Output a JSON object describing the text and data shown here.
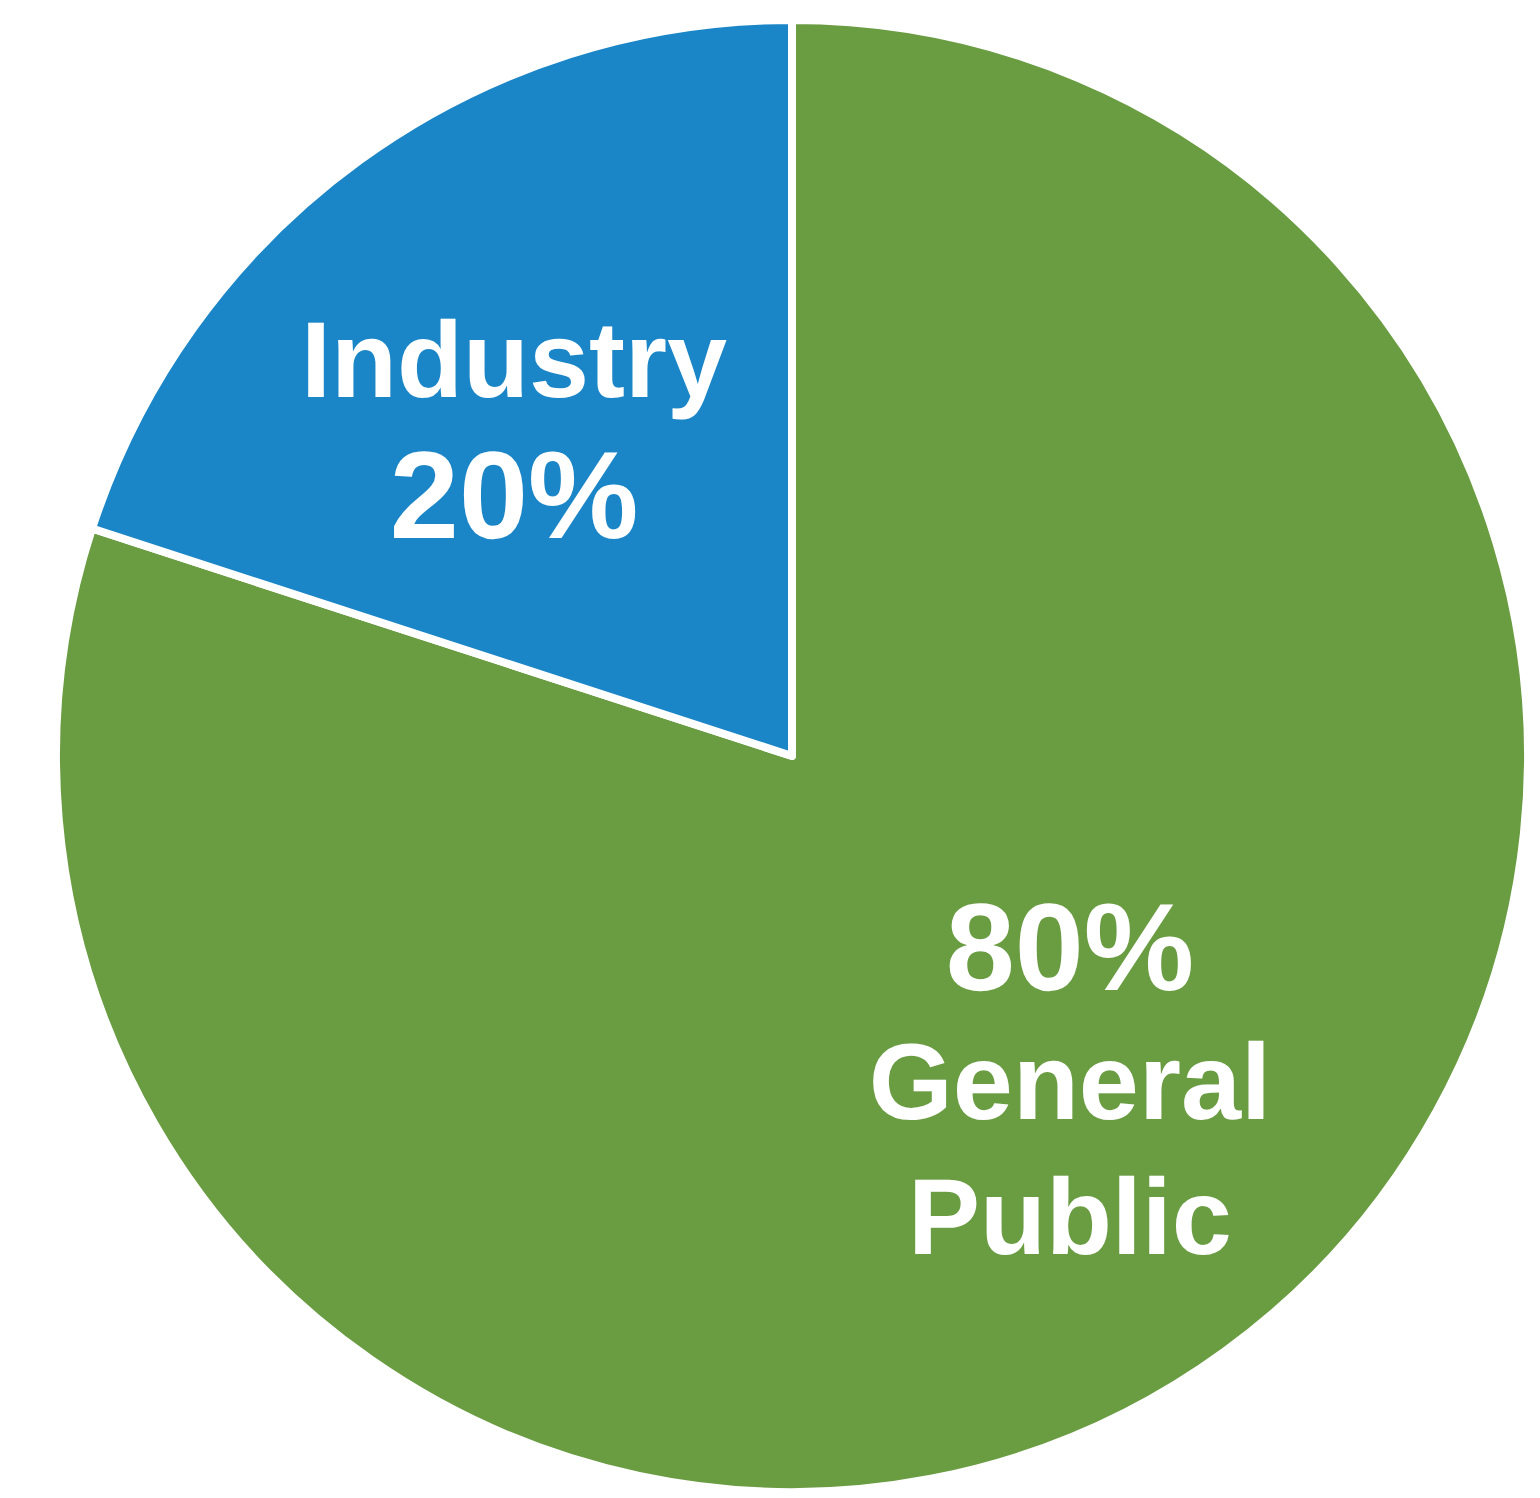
{
  "chart_data": {
    "type": "pie",
    "categories": [
      "General Public",
      "Industry"
    ],
    "values": [
      80,
      20
    ],
    "colors": [
      "#6a9c42",
      "#1a86c7"
    ],
    "value_labels": [
      "80%",
      "20%"
    ]
  }
}
